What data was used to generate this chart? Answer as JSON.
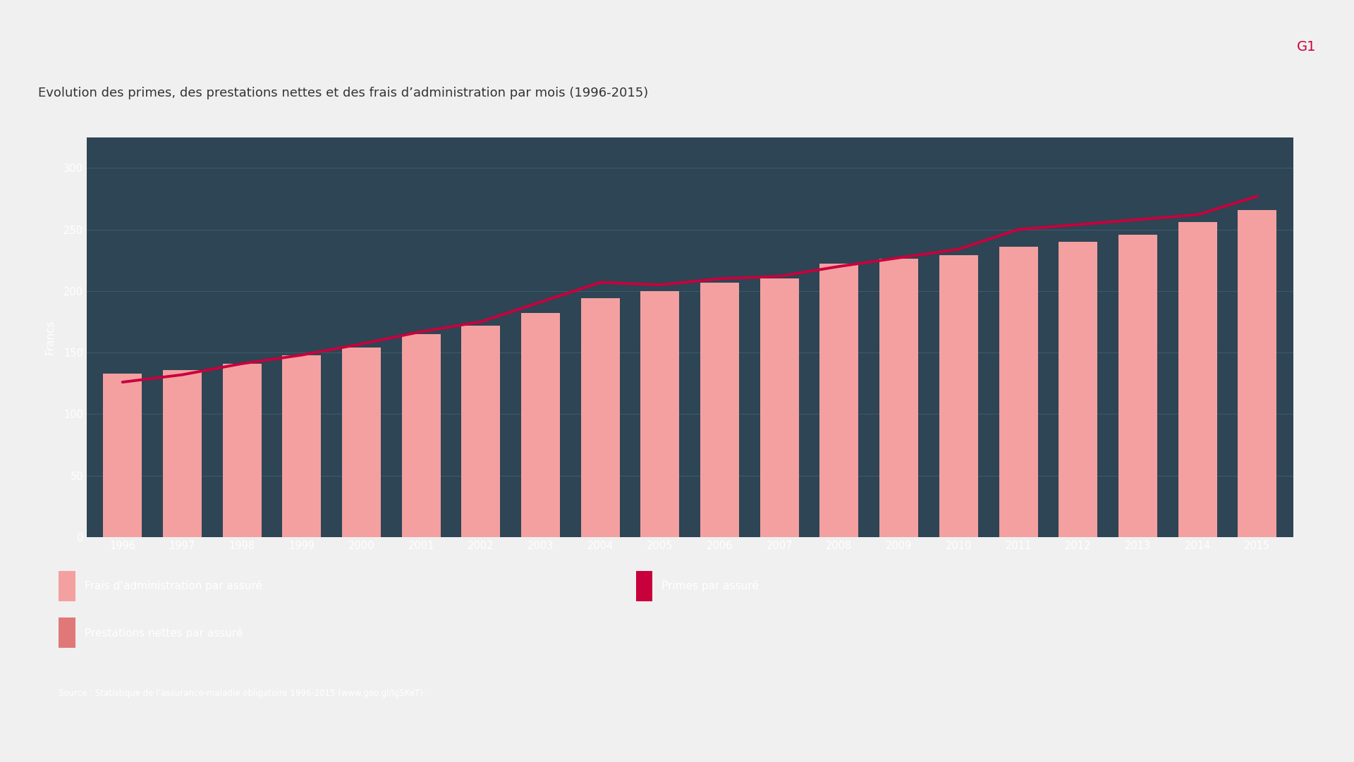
{
  "years": [
    1996,
    1997,
    1998,
    1999,
    2000,
    2001,
    2002,
    2003,
    2004,
    2005,
    2006,
    2007,
    2008,
    2009,
    2010,
    2011,
    2012,
    2013,
    2014,
    2015
  ],
  "bar_values": [
    133,
    136,
    141,
    148,
    154,
    165,
    172,
    182,
    194,
    200,
    207,
    210,
    222,
    226,
    229,
    236,
    240,
    246,
    256,
    266
  ],
  "line_values": [
    126,
    132,
    141,
    148,
    157,
    167,
    175,
    191,
    207,
    205,
    210,
    212,
    220,
    227,
    234,
    250,
    254,
    258,
    262,
    277
  ],
  "bar_color": "#f4a0a0",
  "line_color": "#c8003c",
  "bg_dark": "#2d4555",
  "bg_light": "#e6e6e6",
  "bg_white": "#f0f0f0",
  "title": "Evolution des primes, des prestations nettes et des frais d’administration par mois (1996-2015)",
  "g1_label": "G1",
  "g1_color": "#c8003c",
  "ylabel": "Francs",
  "ylim": [
    0,
    325
  ],
  "yticks": [
    0,
    50,
    100,
    150,
    200,
    250,
    300
  ],
  "source_text": "Source : Statistique de l’assurance-maladie obligatoire 1996-2015 (www.goo.gl/IgSKeT).",
  "text_white": "#ffffff",
  "text_dark": "#333333",
  "grid_color": "#3d5a6a",
  "line_width": 2.8,
  "legend_frais_color": "#f4a0a0",
  "legend_primes_color": "#c8003c",
  "legend_prestations_color": "#e07878",
  "legend_frais": "Frais d’administration par assuré",
  "legend_primes": "Primes par assuré",
  "legend_prestations": "Prestations nettes par assuré"
}
